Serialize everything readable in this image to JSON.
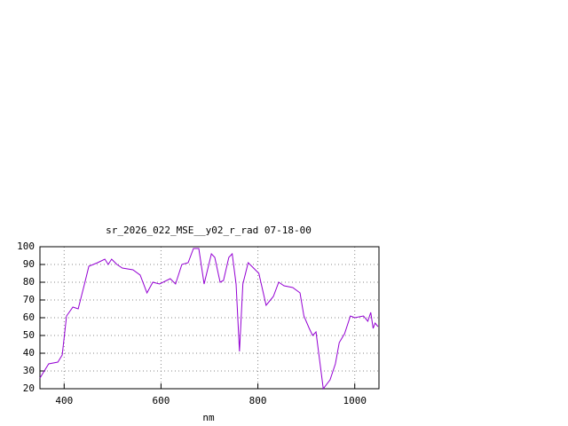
{
  "chart_data": {
    "type": "line",
    "title": "sr_2026_022_MSE__y02_r_rad 07-18-00",
    "x_label": "nm",
    "x": [
      350,
      368,
      387,
      396,
      405,
      418,
      429,
      442,
      451,
      469,
      484,
      491,
      498,
      509,
      520,
      542,
      557,
      571,
      583,
      597,
      619,
      630,
      643,
      656,
      667,
      678,
      689,
      704,
      711,
      722,
      729,
      740,
      747,
      755,
      762,
      769,
      780,
      791,
      802,
      817,
      832,
      843,
      854,
      872,
      887,
      895,
      906,
      913,
      920,
      935,
      949,
      960,
      968,
      979,
      991,
      1000,
      1018,
      1027,
      1033,
      1038,
      1042,
      1048
    ],
    "series": [
      {
        "color": "#9400d3",
        "values": [
          26,
          34,
          35,
          39,
          61,
          66,
          65,
          79,
          89,
          91,
          93,
          90,
          93,
          90,
          88,
          87,
          84,
          74,
          80,
          79,
          82,
          79,
          90,
          91,
          99,
          99,
          79,
          96,
          94,
          80,
          81,
          94,
          96,
          79,
          41,
          79,
          91,
          88,
          85,
          67,
          72,
          80,
          78,
          77,
          74,
          61,
          54,
          50,
          52,
          20,
          25,
          34,
          46,
          51,
          61,
          60,
          61,
          58,
          63,
          54,
          57,
          55
        ]
      }
    ],
    "xlim": [
      350,
      1050
    ],
    "xticks": [
      400,
      600,
      800,
      1000
    ],
    "ylim": [
      20,
      100
    ],
    "yticks": [
      20,
      30,
      40,
      50,
      60,
      70,
      80,
      90,
      100
    ],
    "grid": true
  }
}
